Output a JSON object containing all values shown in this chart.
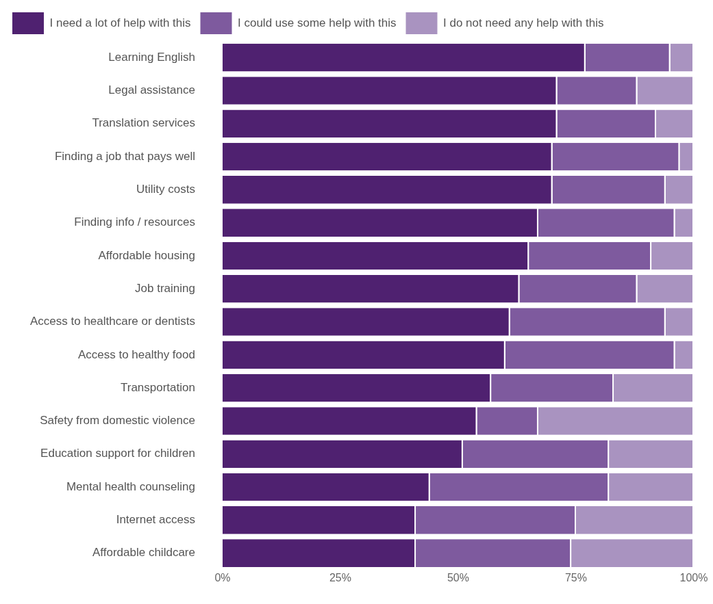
{
  "chart_data": {
    "type": "bar",
    "orientation": "horizontal",
    "stacked": true,
    "legend": "top left",
    "grid": false,
    "categories": [
      "Learning English",
      "Legal assistance",
      "Translation services",
      "Finding a job that pays well",
      "Utility costs",
      "Finding info / resources",
      "Affordable housing",
      "Job training",
      "Access to healthcare or dentists",
      "Access to healthy food",
      "Transportation",
      "Safety from domestic violence",
      "Education support for children",
      "Mental health counseling",
      "Internet access",
      "Affordable childcare"
    ],
    "series": [
      {
        "name": "I need a lot of help with this",
        "color": "#4f2170",
        "values": [
          77,
          71,
          71,
          70,
          70,
          67,
          65,
          63,
          61,
          60,
          57,
          54,
          51,
          44,
          41,
          41
        ]
      },
      {
        "name": "I could use some help with this",
        "color": "#7e5a9e",
        "values": [
          18,
          17,
          21,
          27,
          24,
          29,
          26,
          25,
          33,
          36,
          26,
          13,
          31,
          38,
          34,
          33
        ]
      },
      {
        "name": "I do not need any help with this",
        "color": "#a993c0",
        "values": [
          5,
          12,
          8,
          3,
          6,
          4,
          9,
          12,
          6,
          4,
          17,
          33,
          18,
          18,
          25,
          26
        ]
      }
    ],
    "xlim": [
      0,
      100
    ],
    "xticks": [
      {
        "value": 0,
        "label": "0%"
      },
      {
        "value": 25,
        "label": "25%"
      },
      {
        "value": 50,
        "label": "50%"
      },
      {
        "value": 75,
        "label": "75%"
      },
      {
        "value": 100,
        "label": "100%"
      }
    ]
  }
}
